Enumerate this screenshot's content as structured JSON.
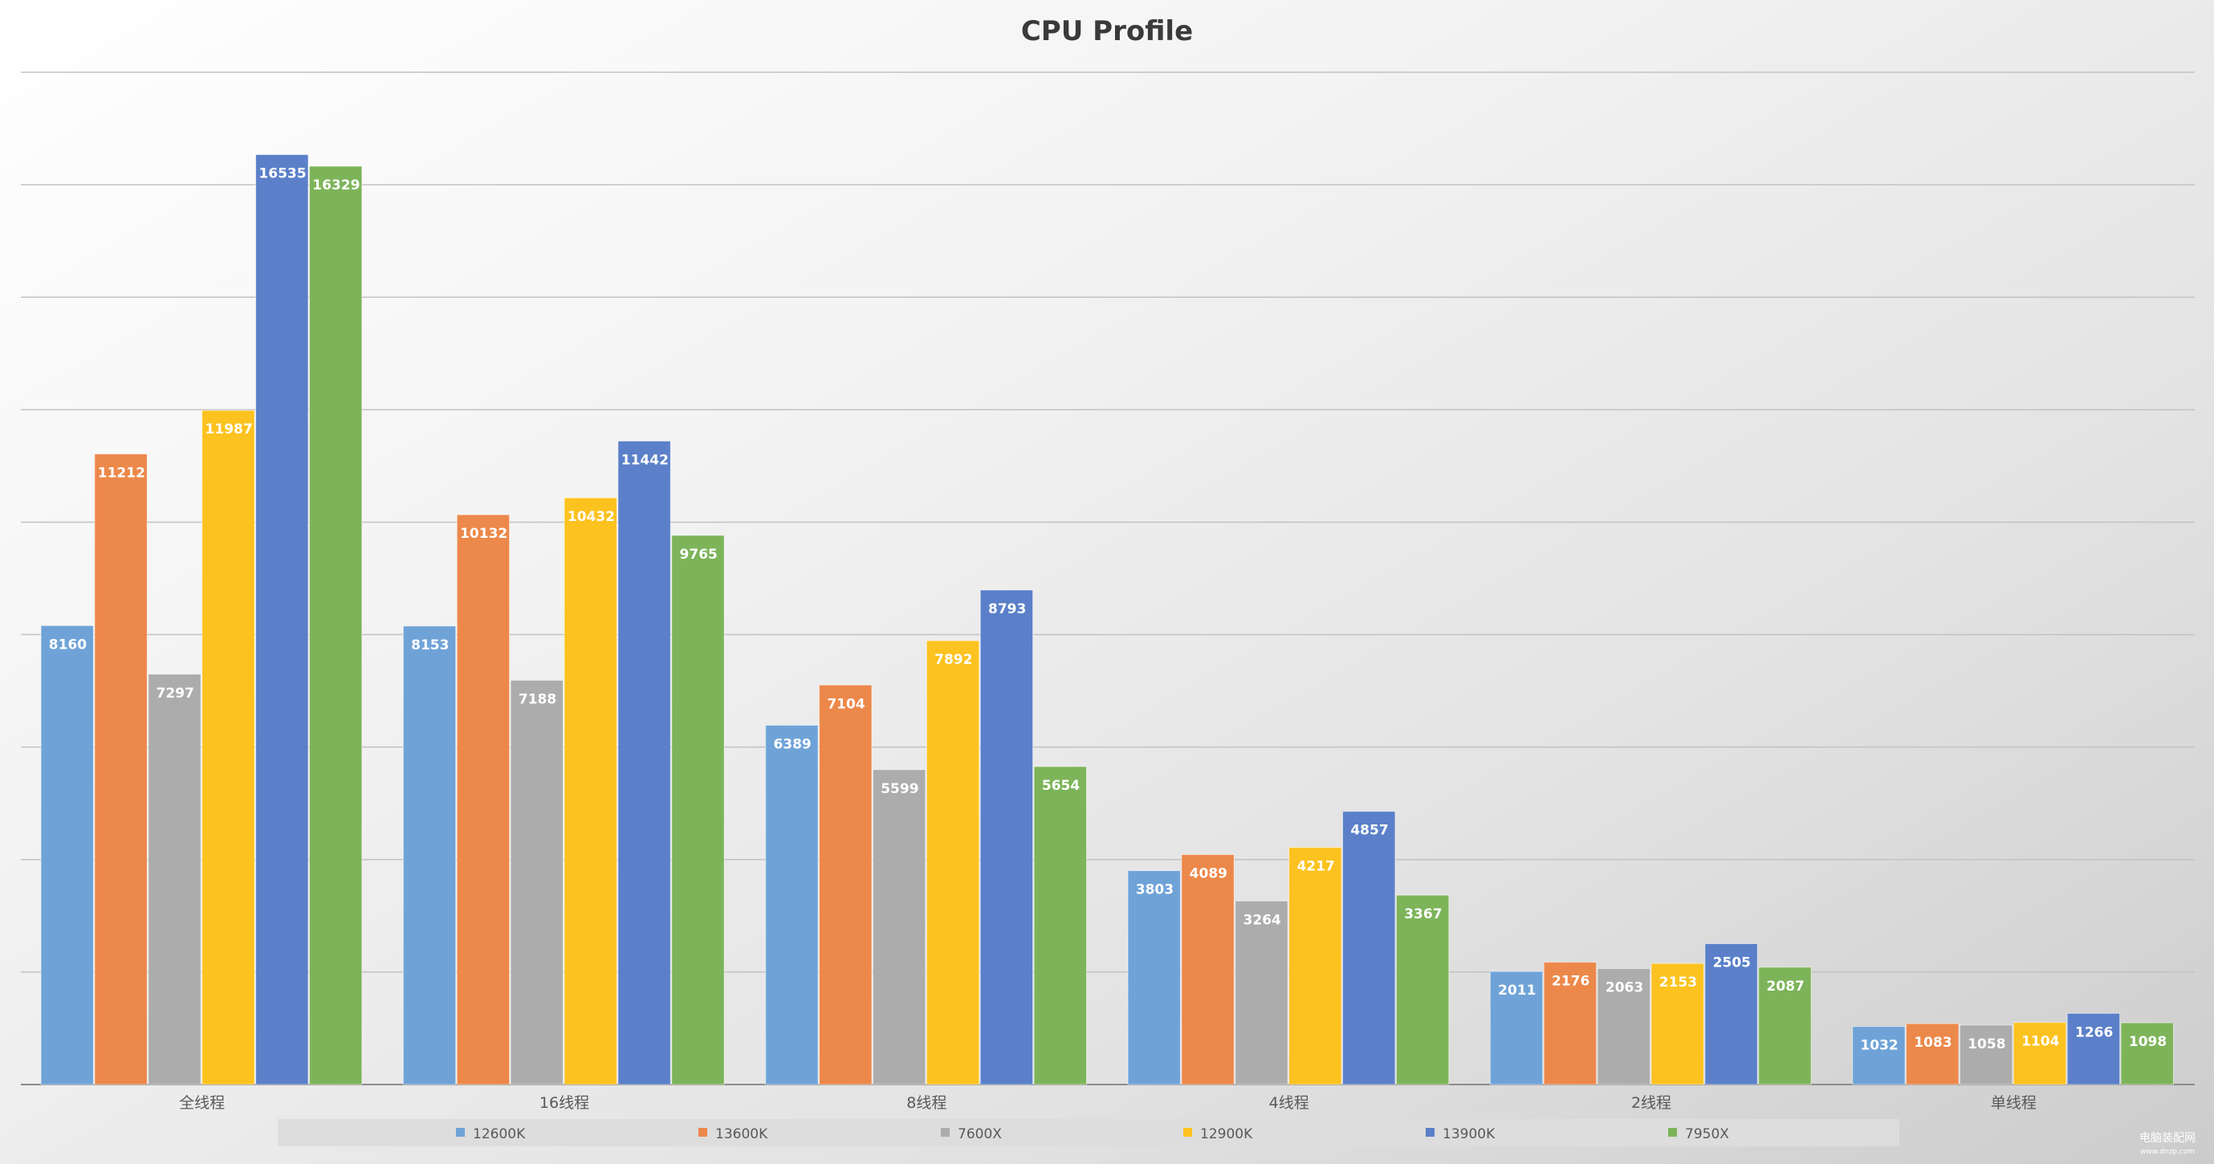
{
  "chart_data": {
    "type": "bar",
    "title": "CPU Profile",
    "categories": [
      "全线程",
      "16线程",
      "8线程",
      "4线程",
      "2线程",
      "单线程"
    ],
    "series": [
      {
        "name": "12600K",
        "color": "#6fa3d8",
        "values": [
          8160,
          8153,
          6389,
          3803,
          2011,
          1032
        ]
      },
      {
        "name": "13600K",
        "color": "#ec884a",
        "values": [
          11212,
          10132,
          7104,
          4089,
          2176,
          1083
        ]
      },
      {
        "name": "7600X",
        "color": "#acacac",
        "values": [
          7297,
          7188,
          5599,
          3264,
          2063,
          1058
        ]
      },
      {
        "name": "12900K",
        "color": "#fcc21f",
        "values": [
          11987,
          10432,
          7892,
          4217,
          2153,
          1104
        ]
      },
      {
        "name": "13900K",
        "color": "#5b80c9",
        "values": [
          16535,
          11442,
          8793,
          4857,
          2505,
          1266
        ]
      },
      {
        "name": "7950X",
        "color": "#7db45a",
        "values": [
          16329,
          9765,
          5654,
          3367,
          2087,
          1098
        ]
      }
    ],
    "xlabel": "",
    "ylabel": "",
    "ylim": [
      0,
      18000
    ],
    "y_tick_step": 2000,
    "y_tick_labels_shown": false,
    "grid": true,
    "data_labels": true,
    "legend_position": "bottom"
  },
  "watermark": {
    "text": "电脑装配网",
    "subtext": "www.dnzp.com"
  }
}
